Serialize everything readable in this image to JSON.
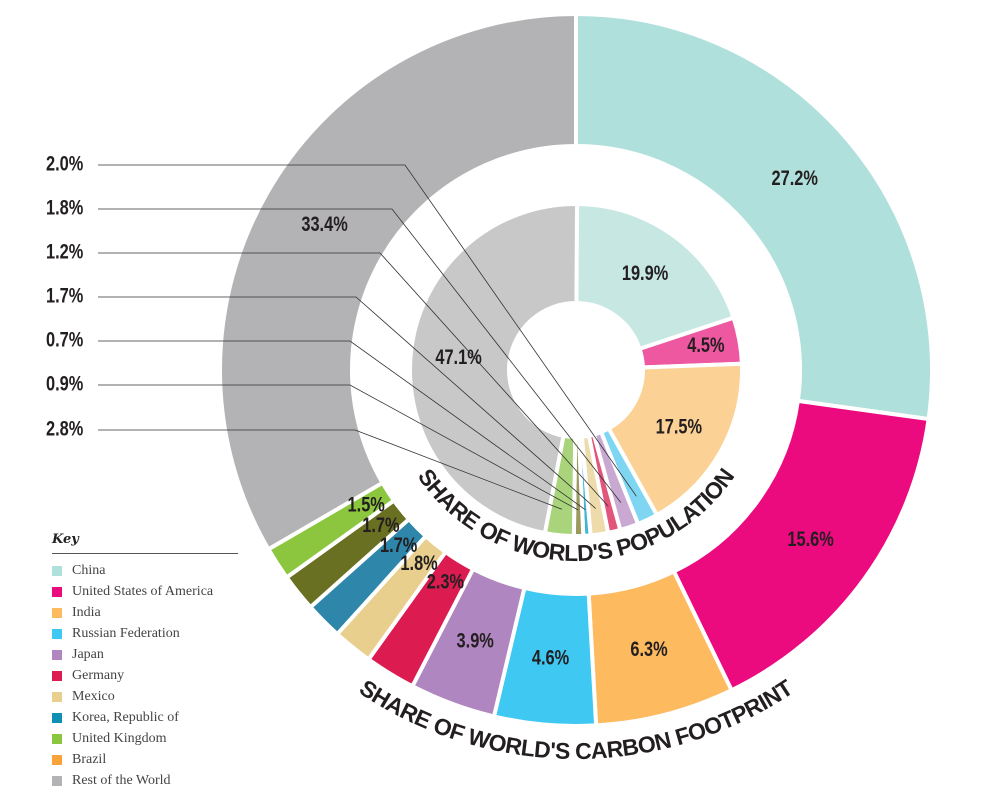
{
  "chart_data": {
    "type": "nested-donut",
    "series": [
      {
        "name": "SHARE OF WORLD'S CARBON FOOTPRINT",
        "ring": "outer",
        "values": [
          27.2,
          15.6,
          6.3,
          4.6,
          3.9,
          2.3,
          1.8,
          1.7,
          1.7,
          1.5,
          33.4
        ],
        "labels": [
          "27.2%",
          "15.6%",
          "6.3%",
          "4.6%",
          "3.9%",
          "2.3%",
          "1.8%",
          "1.7%",
          "1.7%",
          "1.5%",
          "33.4%"
        ],
        "colors": [
          "#b0e0dc",
          "#ec0a7f",
          "#fdba5f",
          "#3fc8f2",
          "#b086c0",
          "#dc1c51",
          "#e8cf8d",
          "#2e86ab",
          "#6a7022",
          "#8cc63f",
          "#b3b3b5"
        ]
      },
      {
        "name": "SHARE OF WORLD'S POPULATION",
        "ring": "inner",
        "values": [
          19.9,
          4.5,
          17.5,
          2.0,
          1.8,
          1.2,
          1.7,
          0.7,
          0.9,
          2.8,
          47.1
        ],
        "labels": [
          "19.9%",
          "4.5%",
          "17.5%",
          "2.0%",
          "1.8%",
          "1.2%",
          "1.7%",
          "0.7%",
          "0.9%",
          "2.8%",
          "47.1%"
        ],
        "colors": [
          "#c7e7e3",
          "#ee58a0",
          "#fbd195",
          "#7fd6f2",
          "#c9a8d2",
          "#e2567b",
          "#eddbac",
          "#41b5d3",
          "#9b9a5c",
          "#a9d47b",
          "#c8c8c8"
        ]
      }
    ],
    "categories": [
      "China",
      "United States of America",
      "India",
      "Russian Federation",
      "Japan",
      "Germany",
      "Mexico",
      "Korea, Republic of",
      "Brazil",
      "United Kingdom",
      "Rest of the World"
    ],
    "callouts": [
      "2.0%",
      "1.8%",
      "1.2%",
      "1.7%",
      "0.7%",
      "0.9%",
      "2.8%"
    ]
  },
  "key": {
    "title": "Key",
    "items": [
      {
        "label": "China",
        "color": "#b0e0dc"
      },
      {
        "label": "United States of America",
        "color": "#ec0a7f"
      },
      {
        "label": "India",
        "color": "#fdba5f"
      },
      {
        "label": "Russian Federation",
        "color": "#3fc8f2"
      },
      {
        "label": "Japan",
        "color": "#b086c0"
      },
      {
        "label": "Germany",
        "color": "#dc1c51"
      },
      {
        "label": "Mexico",
        "color": "#e8cf8d"
      },
      {
        "label": "Korea, Republic of",
        "color": "#0e8fb3"
      },
      {
        "label": "United Kingdom",
        "color": "#8cc63f"
      },
      {
        "label": "Brazil",
        "color": "#f9a33a"
      },
      {
        "label": "Rest of the World",
        "color": "#b3b3b5"
      }
    ]
  }
}
